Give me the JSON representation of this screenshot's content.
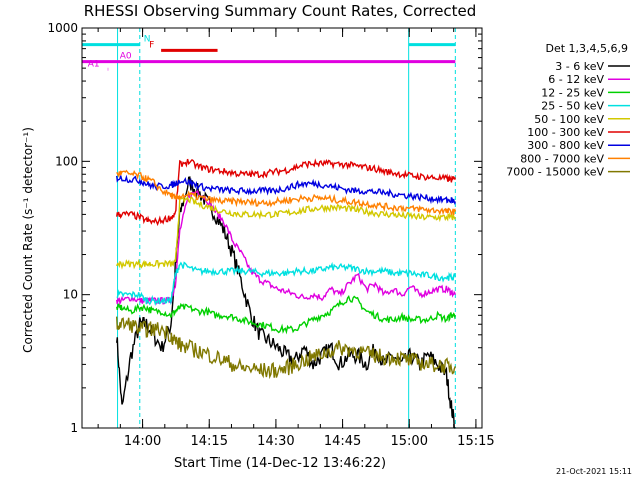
{
  "colors": {
    "background": "#ffffff",
    "axes": "#000000",
    "3-6": "#000000",
    "6-12": "#e000e0",
    "12-25": "#00d000",
    "25-50": "#00e0e0",
    "50-100": "#d2c800",
    "100-300": "#e00000",
    "300-800": "#0000e0",
    "800-7000": "#ff8000",
    "7000-15000": "#807800"
  },
  "footer_date": "21-Oct-2021 15:11",
  "chart_data": {
    "type": "line",
    "title": "RHESSI Observing Summary Count Rates, Corrected",
    "xlabel": "Start Time (14-Dec-12 13:46:22)",
    "ylabel": "Corrected Count Rate (s⁻¹ detector⁻¹)",
    "y_scale": "log",
    "ylim": [
      1,
      1000
    ],
    "y_ticks": [
      1,
      10,
      100,
      1000
    ],
    "y_tick_labels": [
      "1",
      "10",
      "100",
      "1000"
    ],
    "x_unit": "minutes since 13:46:22",
    "xlim": [
      0,
      90
    ],
    "x_ticks": [
      13.63,
      28.63,
      43.63,
      58.63,
      73.63,
      88.63
    ],
    "x_tick_labels": [
      "14:00",
      "14:15",
      "14:30",
      "14:45",
      "15:00",
      "15:15"
    ],
    "legend_title": "Det 1,3,4,5,6,9",
    "legend_position": "right",
    "grid": false,
    "series": [
      {
        "name": "3 - 6 keV",
        "color_key": "3-6",
        "x": [
          7.8,
          9.0,
          11.0,
          13.0,
          14.5,
          16.0,
          18.0,
          20.0,
          21.0,
          22.0,
          24.0,
          26.0,
          28.0,
          30.0,
          32.0,
          34.0,
          36.0,
          38.0,
          40.0,
          42.0,
          44.0,
          46.0,
          48.0,
          50.0,
          52.0,
          54.0,
          56.0,
          58.0,
          60.0,
          62.0,
          64.0,
          66.0,
          68.0,
          70.0,
          72.0,
          74.0,
          76.0,
          78.0,
          80.0,
          82.0,
          83.0,
          84.0
        ],
        "y": [
          5,
          1.4,
          3.5,
          6,
          6,
          5,
          4,
          6,
          16,
          40,
          70,
          60,
          50,
          40,
          30,
          20,
          12,
          7,
          5,
          4.5,
          4,
          3.5,
          3.2,
          4,
          3,
          3.5,
          4,
          3,
          3.5,
          3.5,
          3,
          4,
          3,
          3.5,
          3,
          3.5,
          3,
          3.5,
          3,
          2.5,
          1.5,
          1
        ]
      },
      {
        "name": "6 - 12 keV",
        "color_key": "6-12",
        "x": [
          7.8,
          9.0,
          11.0,
          13.0,
          14.5,
          16.0,
          18.0,
          20.0,
          21.0,
          22.0,
          24.0,
          26.0,
          28.0,
          30.0,
          32.0,
          34.0,
          36.0,
          38.0,
          40.0,
          42.0,
          44.0,
          46.0,
          48.0,
          50.0,
          52.0,
          54.0,
          56.0,
          58.0,
          60.0,
          62.0,
          64.0,
          66.0,
          68.0,
          70.0,
          72.0,
          74.0,
          76.0,
          78.0,
          80.0,
          82.0,
          83.0,
          84.0
        ],
        "y": [
          9,
          9,
          9.5,
          9,
          9,
          9,
          9,
          9,
          12,
          30,
          55,
          60,
          52,
          42,
          35,
          25,
          20,
          15,
          13,
          12,
          11,
          10.5,
          10,
          9.5,
          10,
          9.5,
          11,
          10,
          12,
          14,
          11,
          12,
          10,
          11,
          10,
          11.5,
          10,
          10.5,
          11,
          11,
          10.5,
          10
        ]
      },
      {
        "name": "12 - 25 keV",
        "color_key": "12-25",
        "x": [
          7.8,
          9.0,
          11.0,
          13.0,
          14.5,
          16.0,
          18.0,
          20.0,
          21.0,
          22.0,
          24.0,
          26.0,
          28.0,
          30.0,
          32.0,
          34.0,
          36.0,
          38.0,
          40.0,
          42.0,
          44.0,
          46.0,
          48.0,
          50.0,
          52.0,
          54.0,
          56.0,
          58.0,
          60.0,
          62.0,
          64.0,
          66.0,
          68.0,
          70.0,
          72.0,
          74.0,
          76.0,
          78.0,
          80.0,
          82.0,
          83.0,
          84.0
        ],
        "y": [
          8,
          8,
          7.5,
          8,
          8,
          7.5,
          7.5,
          7,
          7.5,
          8,
          8,
          7.5,
          7.5,
          7,
          7,
          6.8,
          6.5,
          6.2,
          6,
          5.8,
          5.5,
          5.5,
          5.5,
          6,
          6.5,
          7,
          7.5,
          8.5,
          9.5,
          9,
          7.5,
          7,
          6.5,
          6.5,
          6.8,
          6.5,
          6.5,
          6.5,
          7,
          6.5,
          7,
          7
        ]
      },
      {
        "name": "25 - 50 keV",
        "color_key": "25-50",
        "x": [
          7.8,
          9.0,
          11.0,
          13.0,
          14.5,
          16.0,
          18.0,
          20.0,
          21.0,
          22.0,
          24.0,
          26.0,
          28.0,
          30.0,
          32.0,
          34.0,
          36.0,
          38.0,
          40.0,
          42.0,
          44.0,
          46.0,
          48.0,
          50.0,
          52.0,
          54.0,
          56.0,
          58.0,
          60.0,
          62.0,
          64.0,
          66.0,
          68.0,
          70.0,
          72.0,
          74.0,
          76.0,
          78.0,
          80.0,
          82.0,
          83.0,
          84.0
        ],
        "y": [
          10,
          10,
          10,
          10,
          9,
          9,
          9,
          9,
          14,
          17,
          16,
          15,
          15,
          15,
          15,
          15,
          15,
          15,
          14.5,
          14.5,
          14.5,
          14.5,
          15,
          15,
          15,
          15.5,
          16,
          16,
          16,
          15.5,
          15,
          15,
          15,
          14.5,
          14.5,
          14.5,
          14,
          14,
          13.5,
          13.5,
          13.5,
          13.5
        ]
      },
      {
        "name": "50 - 100 keV",
        "color_key": "50-100",
        "x": [
          7.8,
          9.0,
          11.0,
          13.0,
          14.5,
          16.0,
          18.0,
          20.0,
          21.0,
          22.0,
          24.0,
          26.0,
          28.0,
          30.0,
          32.0,
          34.0,
          36.0,
          38.0,
          40.0,
          42.0,
          44.0,
          46.0,
          48.0,
          50.0,
          52.0,
          54.0,
          56.0,
          58.0,
          60.0,
          62.0,
          64.0,
          66.0,
          68.0,
          70.0,
          72.0,
          74.0,
          76.0,
          78.0,
          80.0,
          82.0,
          83.0,
          84.0
        ],
        "y": [
          17,
          17,
          17,
          17,
          17,
          17,
          17,
          17,
          17,
          50,
          52,
          48,
          46,
          44,
          42,
          41,
          40,
          40,
          40,
          40,
          40,
          41,
          42,
          43,
          44,
          45,
          45,
          45,
          44,
          43,
          42,
          41,
          40,
          40,
          39,
          39,
          38,
          38,
          38,
          38,
          38,
          38
        ]
      },
      {
        "name": "100 - 300 keV",
        "color_key": "100-300",
        "x": [
          7.8,
          9.0,
          11.0,
          13.0,
          14.5,
          16.0,
          18.0,
          20.0,
          21.0,
          22.0,
          24.0,
          26.0,
          28.0,
          30.0,
          32.0,
          34.0,
          36.0,
          38.0,
          40.0,
          42.0,
          44.0,
          46.0,
          48.0,
          50.0,
          52.0,
          54.0,
          56.0,
          58.0,
          60.0,
          62.0,
          64.0,
          66.0,
          68.0,
          70.0,
          72.0,
          74.0,
          76.0,
          78.0,
          80.0,
          82.0,
          83.0,
          84.0
        ],
        "y": [
          40,
          40,
          40,
          38,
          36,
          35,
          36,
          38,
          40,
          95,
          100,
          92,
          88,
          86,
          84,
          82,
          80,
          80,
          80,
          82,
          84,
          86,
          90,
          95,
          96,
          96,
          96,
          95,
          94,
          92,
          90,
          88,
          84,
          82,
          80,
          78,
          77,
          76,
          75,
          74,
          73,
          73
        ]
      },
      {
        "name": "300 - 800 keV",
        "color_key": "300-800",
        "x": [
          7.8,
          9.0,
          11.0,
          13.0,
          14.5,
          16.0,
          18.0,
          20.0,
          21.0,
          22.0,
          24.0,
          26.0,
          28.0,
          30.0,
          32.0,
          34.0,
          36.0,
          38.0,
          40.0,
          42.0,
          44.0,
          46.0,
          48.0,
          50.0,
          52.0,
          54.0,
          56.0,
          58.0,
          60.0,
          62.0,
          64.0,
          66.0,
          68.0,
          70.0,
          72.0,
          74.0,
          76.0,
          78.0,
          80.0,
          82.0,
          83.0,
          84.0
        ],
        "y": [
          75,
          75,
          73,
          72,
          68,
          65,
          65,
          66,
          68,
          72,
          70,
          66,
          63,
          62,
          61,
          60,
          60,
          60,
          60,
          60,
          61,
          63,
          66,
          68,
          68,
          67,
          65,
          63,
          61,
          60,
          60,
          59,
          58,
          57,
          56,
          55,
          54,
          53,
          52,
          51,
          51,
          50
        ]
      },
      {
        "name": "800 - 7000 keV",
        "color_key": "800-7000",
        "x": [
          7.8,
          9.0,
          11.0,
          13.0,
          14.5,
          16.0,
          18.0,
          20.0,
          21.0,
          22.0,
          24.0,
          26.0,
          28.0,
          30.0,
          32.0,
          34.0,
          36.0,
          38.0,
          40.0,
          42.0,
          44.0,
          46.0,
          48.0,
          50.0,
          52.0,
          54.0,
          56.0,
          58.0,
          60.0,
          62.0,
          64.0,
          66.0,
          68.0,
          70.0,
          72.0,
          74.0,
          76.0,
          78.0,
          80.0,
          82.0,
          83.0,
          84.0
        ],
        "y": [
          80,
          82,
          80,
          78,
          74,
          70,
          60,
          56,
          52,
          55,
          56,
          54,
          52,
          51,
          50,
          50,
          50,
          49,
          49,
          49,
          50,
          51,
          52,
          53,
          53,
          53,
          52,
          51,
          50,
          49,
          48,
          47,
          46,
          45,
          45,
          44,
          44,
          43,
          43,
          42,
          42,
          42
        ]
      },
      {
        "name": "7000 - 15000 keV",
        "color_key": "7000-15000",
        "x": [
          7.8,
          9.0,
          11.0,
          13.0,
          14.5,
          16.0,
          18.0,
          20.0,
          21.0,
          22.0,
          24.0,
          26.0,
          28.0,
          30.0,
          32.0,
          34.0,
          36.0,
          38.0,
          40.0,
          42.0,
          44.0,
          46.0,
          48.0,
          50.0,
          52.0,
          54.0,
          56.0,
          58.0,
          60.0,
          62.0,
          64.0,
          66.0,
          68.0,
          70.0,
          72.0,
          74.0,
          76.0,
          78.0,
          80.0,
          82.0,
          83.0,
          84.0
        ],
        "y": [
          6,
          6,
          6,
          5.5,
          5.5,
          5.5,
          5.5,
          5,
          4.5,
          4.2,
          4,
          3.8,
          3.6,
          3.4,
          3.2,
          3,
          2.8,
          2.8,
          2.7,
          2.7,
          2.7,
          2.8,
          3,
          3.2,
          3.4,
          3.6,
          3.8,
          4,
          3.9,
          3.8,
          3.6,
          3.5,
          3.4,
          3.4,
          3.3,
          3.2,
          3.1,
          3,
          3,
          2.9,
          2.9,
          2.9
        ]
      }
    ],
    "flags": [
      {
        "label": "N",
        "color_key": "25-50",
        "y": 750,
        "segments": [
          [
            0,
            13
          ],
          [
            73.5,
            84
          ]
        ]
      },
      {
        "label": "F",
        "color_key": "100-300",
        "y": 680,
        "segments": [
          [
            17.8,
            30.5
          ]
        ]
      },
      {
        "label": "A0",
        "color_key": "6-12",
        "y": 560,
        "segments": [
          [
            0,
            84
          ]
        ]
      },
      {
        "label": "A1",
        "color_key": "6-12",
        "y": 490,
        "segments": [
          [
            5.8,
            5.9
          ]
        ]
      }
    ],
    "vertical_markers": [
      {
        "color_key": "25-50",
        "x": 8.0,
        "style": "solid"
      },
      {
        "color_key": "25-50",
        "x": 13.0,
        "style": "dashed"
      },
      {
        "color_key": "25-50",
        "x": 73.5,
        "style": "solid"
      },
      {
        "color_key": "25-50",
        "x": 84.0,
        "style": "dashed"
      }
    ]
  }
}
